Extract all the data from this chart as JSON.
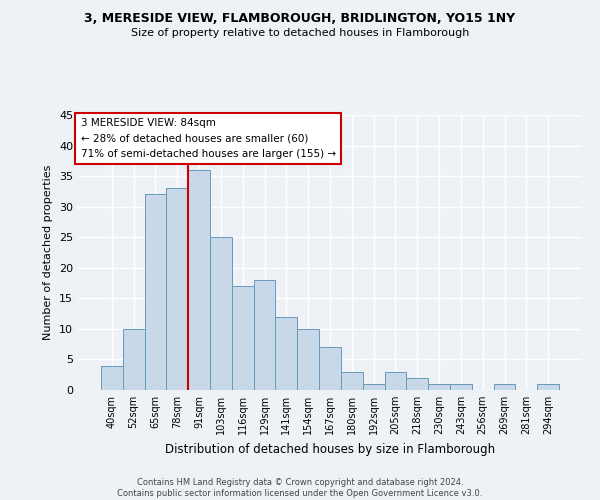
{
  "title_line1": "3, MERESIDE VIEW, FLAMBOROUGH, BRIDLINGTON, YO15 1NY",
  "title_line2": "Size of property relative to detached houses in Flamborough",
  "xlabel": "Distribution of detached houses by size in Flamborough",
  "ylabel": "Number of detached properties",
  "categories": [
    "40sqm",
    "52sqm",
    "65sqm",
    "78sqm",
    "91sqm",
    "103sqm",
    "116sqm",
    "129sqm",
    "141sqm",
    "154sqm",
    "167sqm",
    "180sqm",
    "192sqm",
    "205sqm",
    "218sqm",
    "230sqm",
    "243sqm",
    "256sqm",
    "269sqm",
    "281sqm",
    "294sqm"
  ],
  "values": [
    4,
    10,
    32,
    33,
    36,
    25,
    17,
    18,
    12,
    10,
    7,
    3,
    1,
    3,
    2,
    1,
    1,
    0,
    1,
    0,
    1
  ],
  "bar_color": "#c8d8e8",
  "bar_edge_color": "#6699bb",
  "vline_x": 3.5,
  "vline_color": "#cc0000",
  "annotation_line1": "3 MERESIDE VIEW: 84sqm",
  "annotation_line2": "← 28% of detached houses are smaller (60)",
  "annotation_line3": "71% of semi-detached houses are larger (155) →",
  "box_edge_color": "#cc0000",
  "ylim": [
    0,
    45
  ],
  "yticks": [
    0,
    5,
    10,
    15,
    20,
    25,
    30,
    35,
    40,
    45
  ],
  "footer_text": "Contains HM Land Registry data © Crown copyright and database right 2024.\nContains public sector information licensed under the Open Government Licence v3.0.",
  "bg_color": "#eef2f7",
  "grid_color": "#ffffff"
}
